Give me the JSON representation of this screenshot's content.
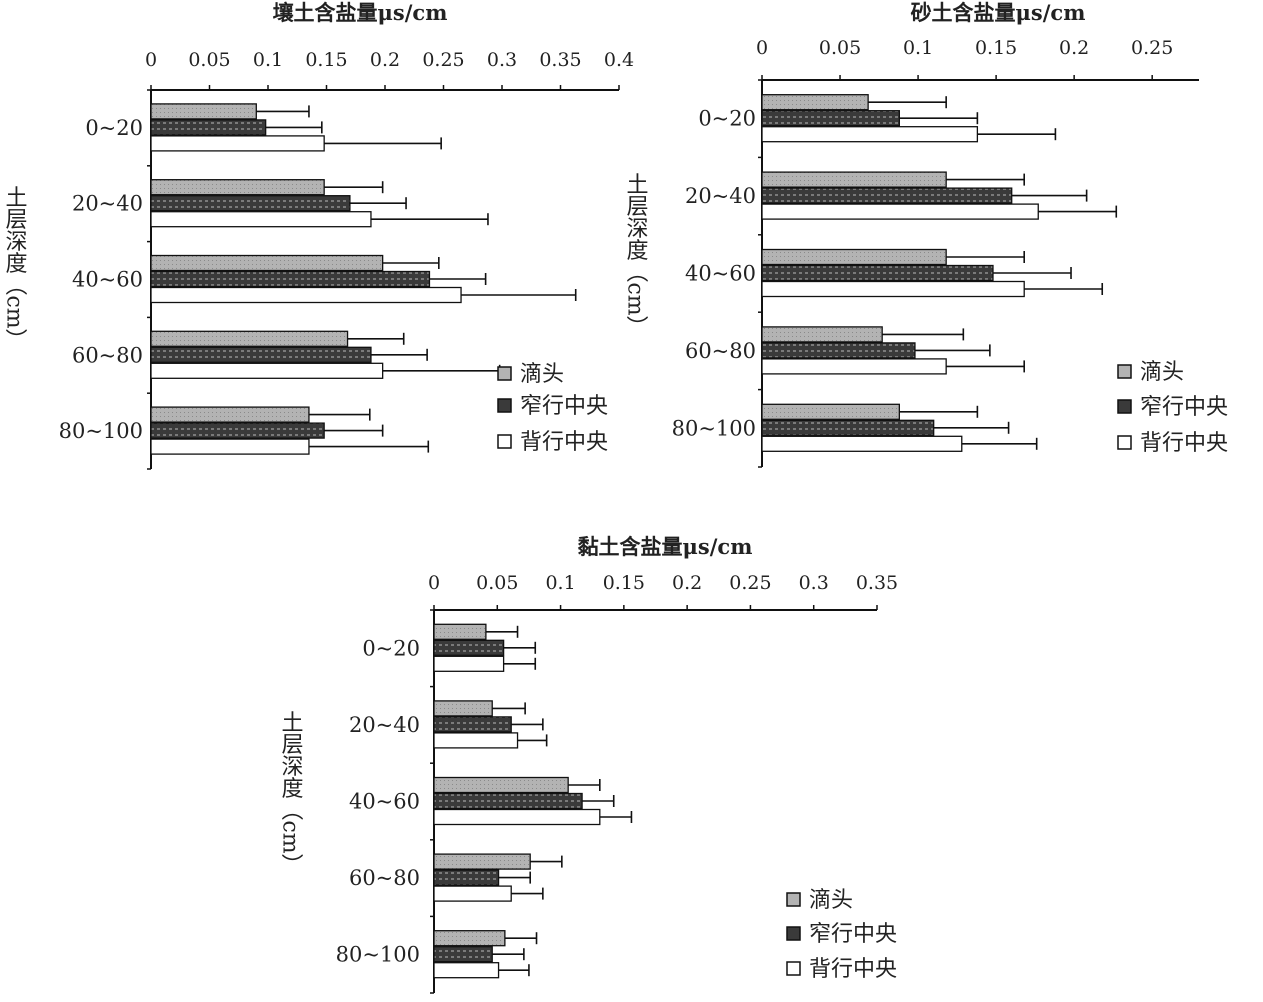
{
  "colors": {
    "dripper": "#b3b3b3",
    "narrow": "#3a3a3a",
    "wide": "#ffffff",
    "axis": "#111111"
  },
  "chart_data": [
    {
      "type": "bar",
      "orientation": "horizontal",
      "title": "壤土含盐量μs/cm",
      "ylabel": "土层深度（cm）",
      "xlim": [
        0,
        0.4
      ],
      "xticks": [
        0,
        0.05,
        0.1,
        0.15,
        0.2,
        0.25,
        0.3,
        0.35,
        0.4
      ],
      "xtick_labels": [
        "0",
        "0.05",
        "0.1",
        "0.15",
        "0.2",
        "0.25",
        "0.3",
        "0.35",
        "0.4"
      ],
      "categories": [
        "0~20",
        "20~40",
        "40~60",
        "60~80",
        "80~100"
      ],
      "series": [
        {
          "name": "滴头",
          "values": [
            0.09,
            0.148,
            0.198,
            0.168,
            0.135
          ],
          "errors": [
            0.045,
            0.05,
            0.048,
            0.048,
            0.052
          ]
        },
        {
          "name": "窄行中央",
          "values": [
            0.098,
            0.17,
            0.238,
            0.188,
            0.148
          ],
          "errors": [
            0.048,
            0.048,
            0.048,
            0.048,
            0.05
          ]
        },
        {
          "name": "背行中央",
          "values": [
            0.148,
            0.188,
            0.265,
            0.198,
            0.135
          ],
          "errors": [
            0.1,
            0.1,
            0.098,
            0.1,
            0.102
          ]
        }
      ],
      "legend": "right",
      "grid": false
    },
    {
      "type": "bar",
      "orientation": "horizontal",
      "title": "砂土含盐量μs/cm",
      "ylabel": "土层深度（cm）",
      "xlim": [
        0,
        0.28
      ],
      "xticks": [
        0,
        0.05,
        0.1,
        0.15,
        0.2,
        0.25
      ],
      "xtick_labels": [
        "0",
        "0.05",
        "0.1",
        "0.15",
        "0.2",
        "0.25"
      ],
      "categories": [
        "0~20",
        "20~40",
        "40~60",
        "60~80",
        "80~100"
      ],
      "series": [
        {
          "name": "滴头",
          "values": [
            0.068,
            0.118,
            0.118,
            0.077,
            0.088
          ],
          "errors": [
            0.05,
            0.05,
            0.05,
            0.052,
            0.05
          ]
        },
        {
          "name": "窄行中央",
          "values": [
            0.088,
            0.16,
            0.148,
            0.098,
            0.11
          ],
          "errors": [
            0.05,
            0.048,
            0.05,
            0.048,
            0.048
          ]
        },
        {
          "name": "背行中央",
          "values": [
            0.138,
            0.177,
            0.168,
            0.118,
            0.128
          ],
          "errors": [
            0.05,
            0.05,
            0.05,
            0.05,
            0.048
          ]
        }
      ],
      "legend": "right",
      "grid": false
    },
    {
      "type": "bar",
      "orientation": "horizontal",
      "title": "黏土含盐量μs/cm",
      "ylabel": "土层深度（cm）",
      "xlim": [
        0,
        0.35
      ],
      "xticks": [
        0,
        0.05,
        0.1,
        0.15,
        0.2,
        0.25,
        0.3,
        0.35
      ],
      "xtick_labels": [
        "0",
        "0.05",
        "0.1",
        "0.15",
        "0.2",
        "0.25",
        "0.3",
        "0.35"
      ],
      "categories": [
        "0~20",
        "20~40",
        "40~60",
        "60~80",
        "80~100"
      ],
      "series": [
        {
          "name": "滴头",
          "values": [
            0.041,
            0.046,
            0.106,
            0.076,
            0.056
          ],
          "errors": [
            0.025,
            0.026,
            0.025,
            0.025,
            0.025
          ]
        },
        {
          "name": "窄行中央",
          "values": [
            0.055,
            0.061,
            0.117,
            0.051,
            0.046
          ],
          "errors": [
            0.025,
            0.025,
            0.025,
            0.025,
            0.025
          ]
        },
        {
          "name": "背行中央",
          "values": [
            0.055,
            0.066,
            0.131,
            0.061,
            0.051
          ],
          "errors": [
            0.025,
            0.023,
            0.025,
            0.025,
            0.024
          ]
        }
      ],
      "legend": "right",
      "grid": false
    }
  ]
}
